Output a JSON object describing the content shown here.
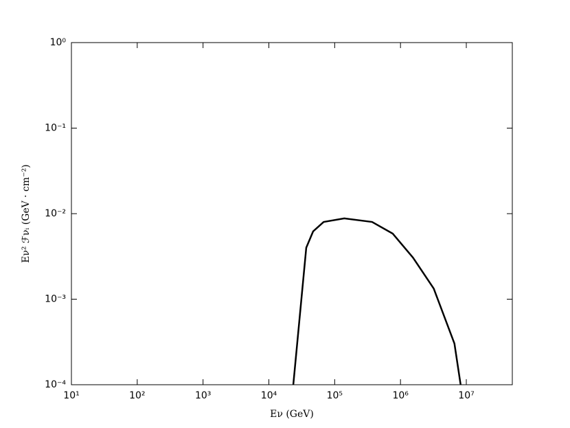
{
  "chart_data": {
    "type": "line",
    "xlabel": "Eν (GeV)",
    "ylabel": "Eν² ℱνᵢ (GeV · cm⁻²)",
    "x": [
      23500,
      37000,
      47000,
      68000,
      140000,
      370000,
      760000,
      1550000,
      3200000,
      6600000,
      8200000
    ],
    "values": [
      0.0001,
      0.004,
      0.0062,
      0.008,
      0.0088,
      0.008,
      0.00585,
      0.00306,
      0.00133,
      0.000303,
      0.0001
    ],
    "color": "#000000",
    "xscale": "log",
    "yscale": "log",
    "xlim": [
      10,
      50000000
    ],
    "ylim": [
      0.0001,
      1
    ],
    "xticks": [
      {
        "value": 10,
        "label": "10¹"
      },
      {
        "value": 100,
        "label": "10²"
      },
      {
        "value": 1000,
        "label": "10³"
      },
      {
        "value": 10000,
        "label": "10⁴"
      },
      {
        "value": 100000,
        "label": "10⁵"
      },
      {
        "value": 1000000,
        "label": "10⁶"
      },
      {
        "value": 10000000,
        "label": "10⁷"
      }
    ],
    "yticks": [
      {
        "value": 0.0001,
        "label": "10⁻⁴"
      },
      {
        "value": 0.001,
        "label": "10⁻³"
      },
      {
        "value": 0.01,
        "label": "10⁻²"
      },
      {
        "value": 0.1,
        "label": "10⁻¹"
      },
      {
        "value": 1,
        "label": "10⁰"
      }
    ],
    "grid": false
  }
}
